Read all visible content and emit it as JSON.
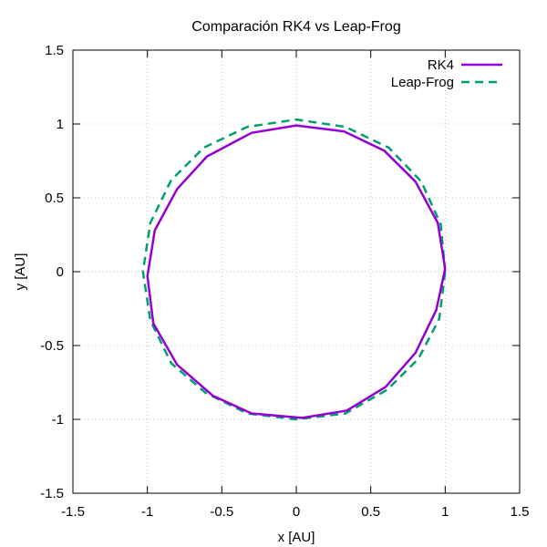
{
  "chart_data": {
    "type": "line",
    "title": "Comparación RK4 vs Leap-Frog",
    "xlabel": "x [AU]",
    "ylabel": "y [AU]",
    "xlim": [
      -1.5,
      1.5
    ],
    "ylim": [
      -1.5,
      1.5
    ],
    "x_ticks": [
      "-1.5",
      "-1",
      "-0.5",
      "0",
      "0.5",
      "1",
      "1.5"
    ],
    "y_ticks": [
      "-1.5",
      "-1",
      "-0.5",
      "0",
      "0.5",
      "1",
      "1.5"
    ],
    "grid": true,
    "legend_position": "top-right",
    "series": [
      {
        "name": "RK4",
        "color": "#9400d3",
        "style": "solid",
        "x": [
          1.0,
          0.95,
          0.8,
          0.59,
          0.32,
          0.0,
          -0.3,
          -0.6,
          -0.8,
          -0.95,
          -1.0,
          -0.96,
          -0.8,
          -0.56,
          -0.3,
          0.04,
          0.34,
          0.6,
          0.8,
          0.94,
          1.0
        ],
        "y": [
          0.02,
          0.33,
          0.61,
          0.82,
          0.95,
          0.99,
          0.94,
          0.78,
          0.56,
          0.28,
          -0.03,
          -0.35,
          -0.63,
          -0.84,
          -0.96,
          -0.99,
          -0.94,
          -0.78,
          -0.55,
          -0.26,
          0.02
        ]
      },
      {
        "name": "Leap-Frog",
        "color": "#009e73",
        "style": "dashed",
        "x": [
          1.0,
          0.97,
          0.84,
          0.62,
          0.33,
          0.0,
          -0.33,
          -0.62,
          -0.84,
          -0.98,
          -1.03,
          -0.98,
          -0.84,
          -0.61,
          -0.33,
          0.0,
          0.33,
          0.61,
          0.82,
          0.96,
          1.0
        ],
        "y": [
          0.0,
          0.32,
          0.61,
          0.84,
          0.98,
          1.03,
          0.98,
          0.84,
          0.62,
          0.33,
          0.0,
          -0.33,
          -0.62,
          -0.82,
          -0.96,
          -1.0,
          -0.96,
          -0.8,
          -0.59,
          -0.32,
          0.0
        ]
      }
    ]
  }
}
